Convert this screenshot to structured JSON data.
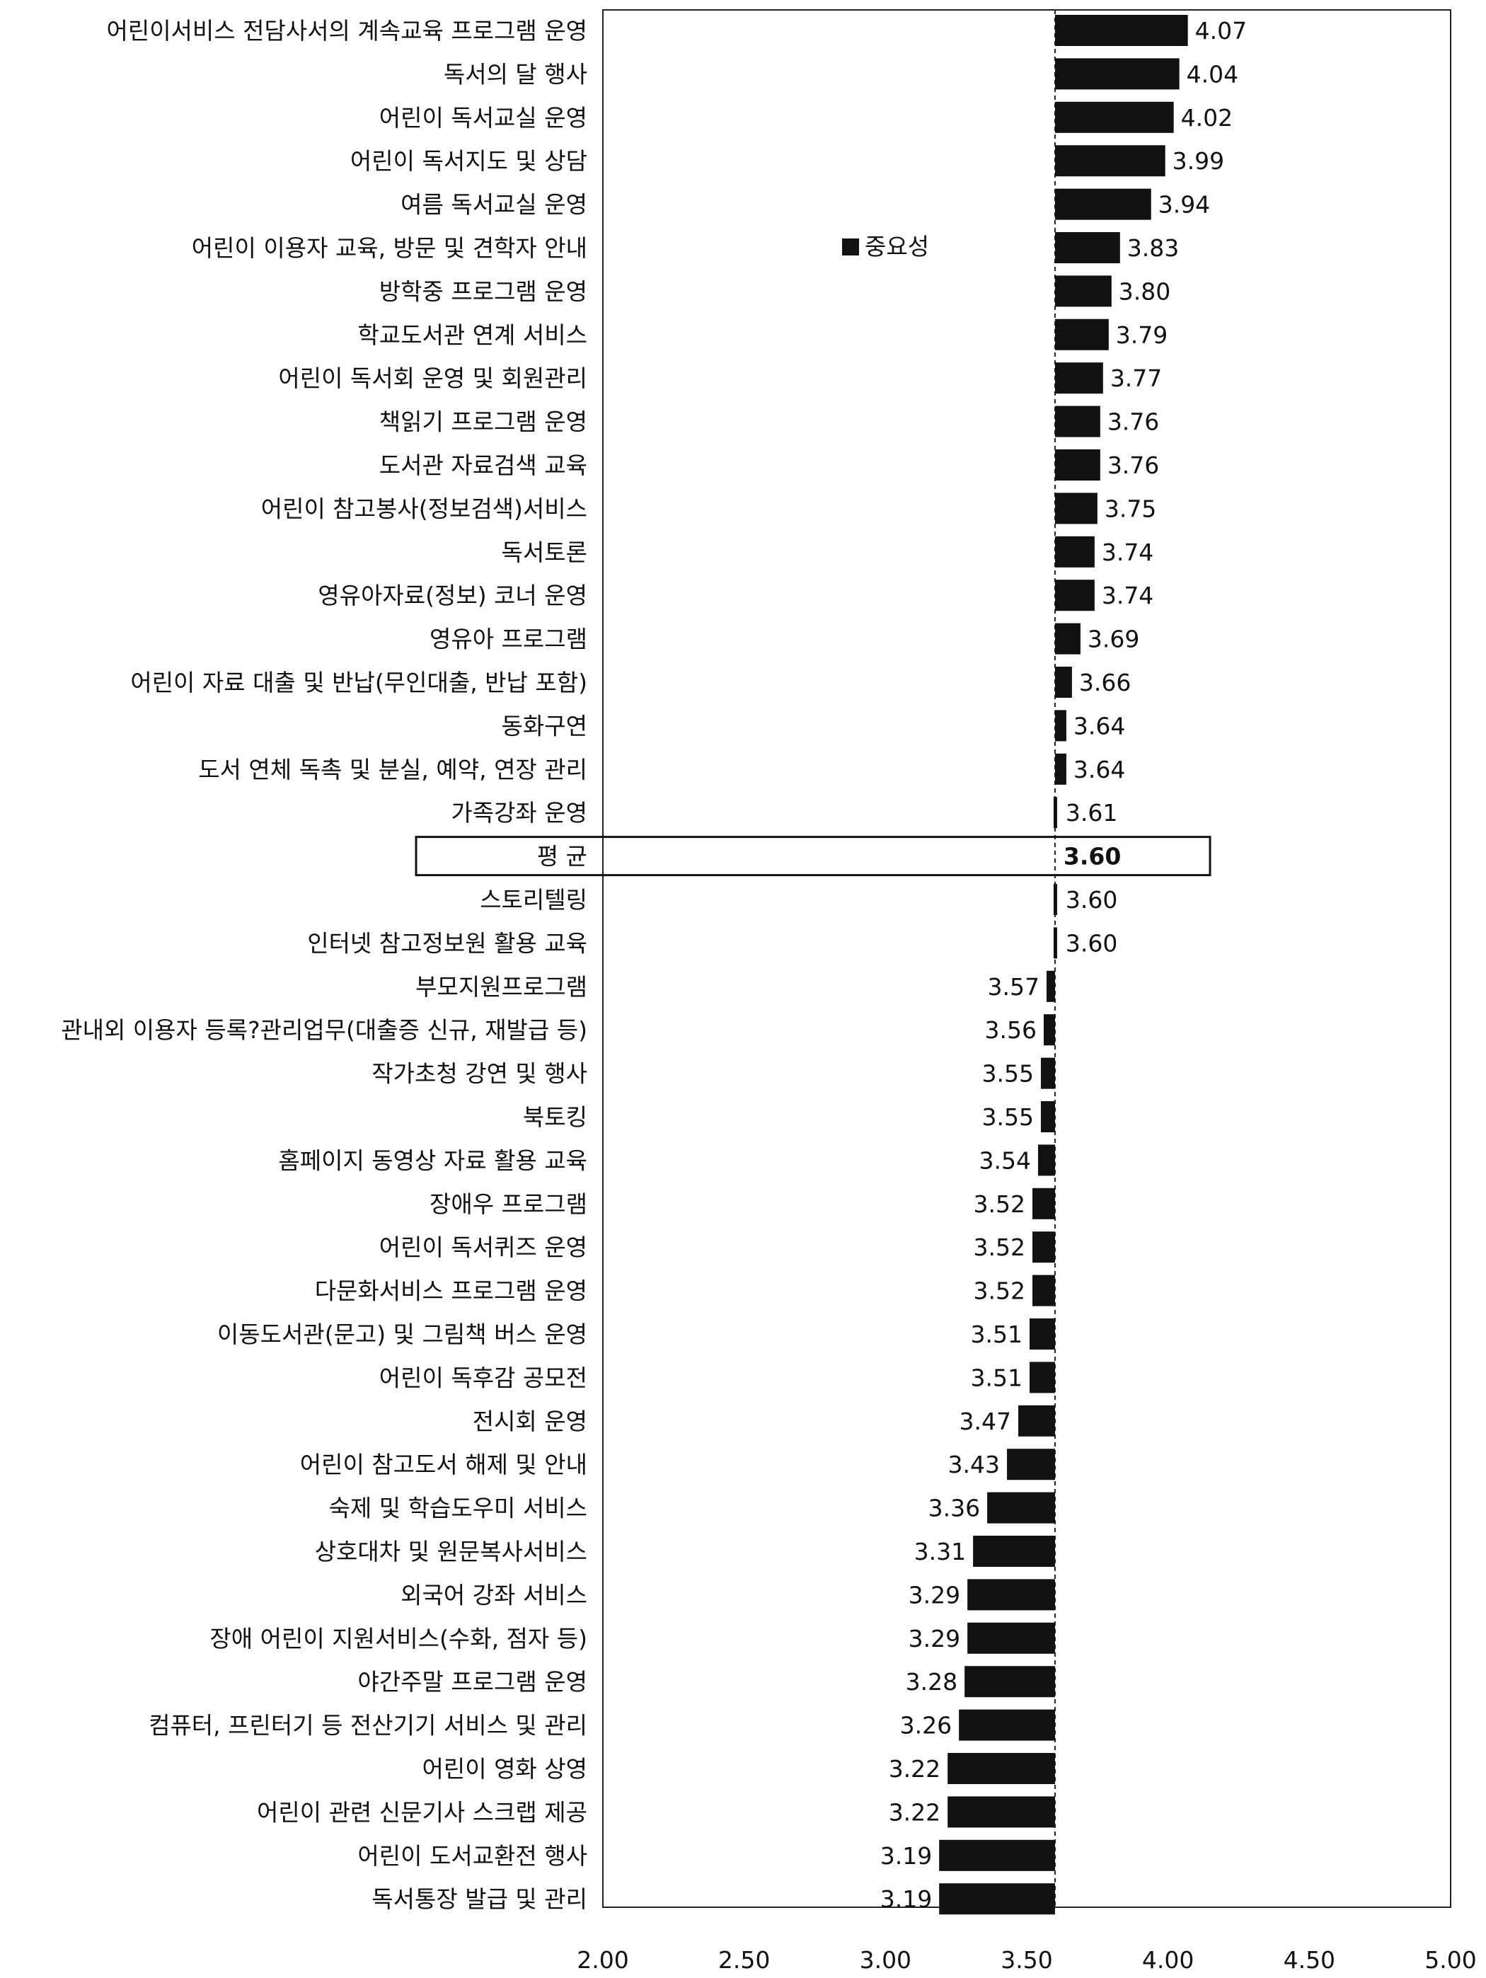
{
  "chart_data": {
    "type": "bar",
    "orientation": "horizontal",
    "baseline": 3.6,
    "xlim": [
      2.0,
      5.0
    ],
    "xticks": [
      "2.00",
      "2.50",
      "3.00",
      "3.50",
      "4.00",
      "4.50",
      "5.00"
    ],
    "legend": {
      "label": "중요성",
      "placement": "upper-middle"
    },
    "highlight_category": "평 균",
    "bar_color": "#111111",
    "series": [
      {
        "name": "중요성"
      }
    ],
    "categories": [
      "어린이서비스 전담사서의 계속교육 프로그램 운영",
      "독서의 달 행사",
      "어린이 독서교실 운영",
      "어린이 독서지도 및 상담",
      "여름 독서교실 운영",
      "어린이 이용자 교육, 방문 및 견학자 안내",
      "방학중 프로그램 운영",
      "학교도서관 연계 서비스",
      "어린이 독서회 운영 및 회원관리",
      "책읽기 프로그램 운영",
      "도서관 자료검색 교육",
      "어린이 참고봉사(정보검색)서비스",
      "독서토론",
      "영유아자료(정보) 코너 운영",
      "영유아 프로그램",
      "어린이 자료 대출 및 반납(무인대출, 반납 포함)",
      "동화구연",
      "도서 연체 독촉 및 분실, 예약, 연장 관리",
      "가족강좌 운영",
      "평 균",
      "스토리텔링",
      "인터넷 참고정보원 활용 교육",
      "부모지원프로그램",
      "관내외 이용자 등록?관리업무(대출증 신규, 재발급 등)",
      "작가초청 강연 및 행사",
      "북토킹",
      "홈페이지 동영상 자료 활용 교육",
      "장애우 프로그램",
      "어린이 독서퀴즈 운영",
      "다문화서비스 프로그램 운영",
      "이동도서관(문고) 및 그림책 버스 운영",
      "어린이 독후감 공모전",
      "전시회 운영",
      "어린이 참고도서 해제 및 안내",
      "숙제 및 학습도우미 서비스",
      "상호대차 및 원문복사서비스",
      "외국어 강좌 서비스",
      "장애 어린이 지원서비스(수화, 점자 등)",
      "야간주말 프로그램 운영",
      "컴퓨터, 프린터기 등 전산기기 서비스 및 관리",
      "어린이 영화 상영",
      "어린이 관련 신문기사 스크랩 제공",
      "어린이 도서교환전 행사",
      "독서통장 발급 및 관리"
    ],
    "values": [
      4.07,
      4.04,
      4.02,
      3.99,
      3.94,
      3.83,
      3.8,
      3.79,
      3.77,
      3.76,
      3.76,
      3.75,
      3.74,
      3.74,
      3.69,
      3.66,
      3.64,
      3.64,
      3.61,
      3.6,
      3.6,
      3.6,
      3.57,
      3.56,
      3.55,
      3.55,
      3.54,
      3.52,
      3.52,
      3.52,
      3.51,
      3.51,
      3.47,
      3.43,
      3.36,
      3.31,
      3.29,
      3.29,
      3.28,
      3.26,
      3.22,
      3.22,
      3.19,
      3.19
    ],
    "value_labels": [
      "4.07",
      "4.04",
      "4.02",
      "3.99",
      "3.94",
      "3.83",
      "3.80",
      "3.79",
      "3.77",
      "3.76",
      "3.76",
      "3.75",
      "3.74",
      "3.74",
      "3.69",
      "3.66",
      "3.64",
      "3.64",
      "3.61",
      "3.60",
      "3.60",
      "3.60",
      "3.57",
      "3.56",
      "3.55",
      "3.55",
      "3.54",
      "3.52",
      "3.52",
      "3.52",
      "3.51",
      "3.51",
      "3.47",
      "3.43",
      "3.36",
      "3.31",
      "3.29",
      "3.29",
      "3.28",
      "3.26",
      "3.22",
      "3.22",
      "3.19",
      "3.19"
    ]
  }
}
